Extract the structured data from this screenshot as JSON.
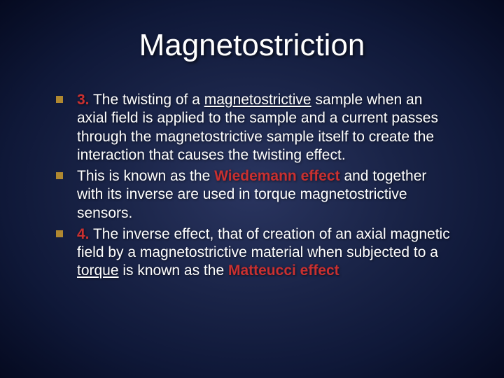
{
  "slide": {
    "title": "Magnetostriction",
    "title_fontsize": 44,
    "body_fontsize": 21,
    "background_gradient": [
      "#2a3560",
      "#1a2448",
      "#0f1838",
      "#050a20"
    ],
    "text_color": "#ffffff",
    "bullet_color": "#b08830",
    "accent_color": "#c93030",
    "bullets": [
      {
        "num": "3.",
        "pre": " The twisting of a ",
        "u1": "magnetostrictive",
        "mid1": " sample when an axial field is applied to the sample and a current passes through the magnetostrictive sample itself to create the interaction that causes the twisting effect."
      },
      {
        "pre": "This is known as the ",
        "kw": "Wiedemann effect",
        "mid1": " and together with its inverse are used in torque magnetostrictive sensors."
      },
      {
        "num": "4.",
        "pre": " The inverse effect, that of creation of an axial magnetic field by a magnetostrictive material when subjected to a ",
        "u1": "torque",
        "mid1": " is known as the ",
        "kw": "Matteucci effect"
      }
    ]
  }
}
